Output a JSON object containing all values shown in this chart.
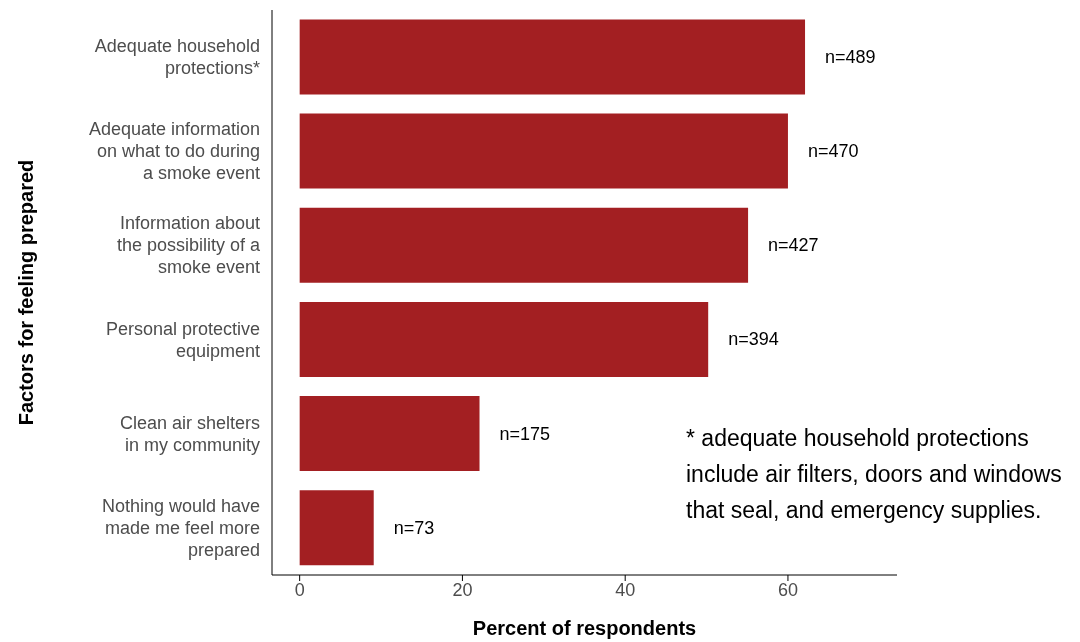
{
  "chart_data": {
    "type": "bar",
    "orientation": "horizontal",
    "xlabel": "Percent of respondents",
    "ylabel": "Factors for feeling prepared",
    "categories": [
      "Adequate household protections*",
      "Adequate information on what to do during a smoke event",
      "Information about the possibility of a smoke event",
      "Personal protective equipment",
      "Clean air shelters in my community",
      "Nothing would have made me feel more prepared"
    ],
    "values": [
      62.1,
      60.0,
      55.1,
      50.2,
      22.1,
      9.1
    ],
    "color": "#a31f22",
    "xlim": [
      -3.4,
      73.4
    ],
    "xticks": [
      0,
      20,
      40,
      60
    ],
    "grid": false,
    "legend": false,
    "annotations": [
      {
        "text": "n=489",
        "x": 62.1,
        "y": "Adequate household protections*"
      },
      {
        "text": "n=470",
        "x": 60.0,
        "y": "Adequate information on what to do during a smoke event"
      },
      {
        "text": "n=427",
        "x": 55.1,
        "y": "Information about the possibility of a smoke event"
      },
      {
        "text": "n=394",
        "x": 50.2,
        "y": "Personal protective equipment"
      },
      {
        "text": "n=175",
        "x": 22.1,
        "y": "Clean air shelters in my community"
      },
      {
        "text": "n=73",
        "x": 9.1,
        "y": "Nothing would have made me feel more prepared"
      },
      "* adequate household protections include air filters, doors and windows that seal, and emergency supplies."
    ]
  }
}
